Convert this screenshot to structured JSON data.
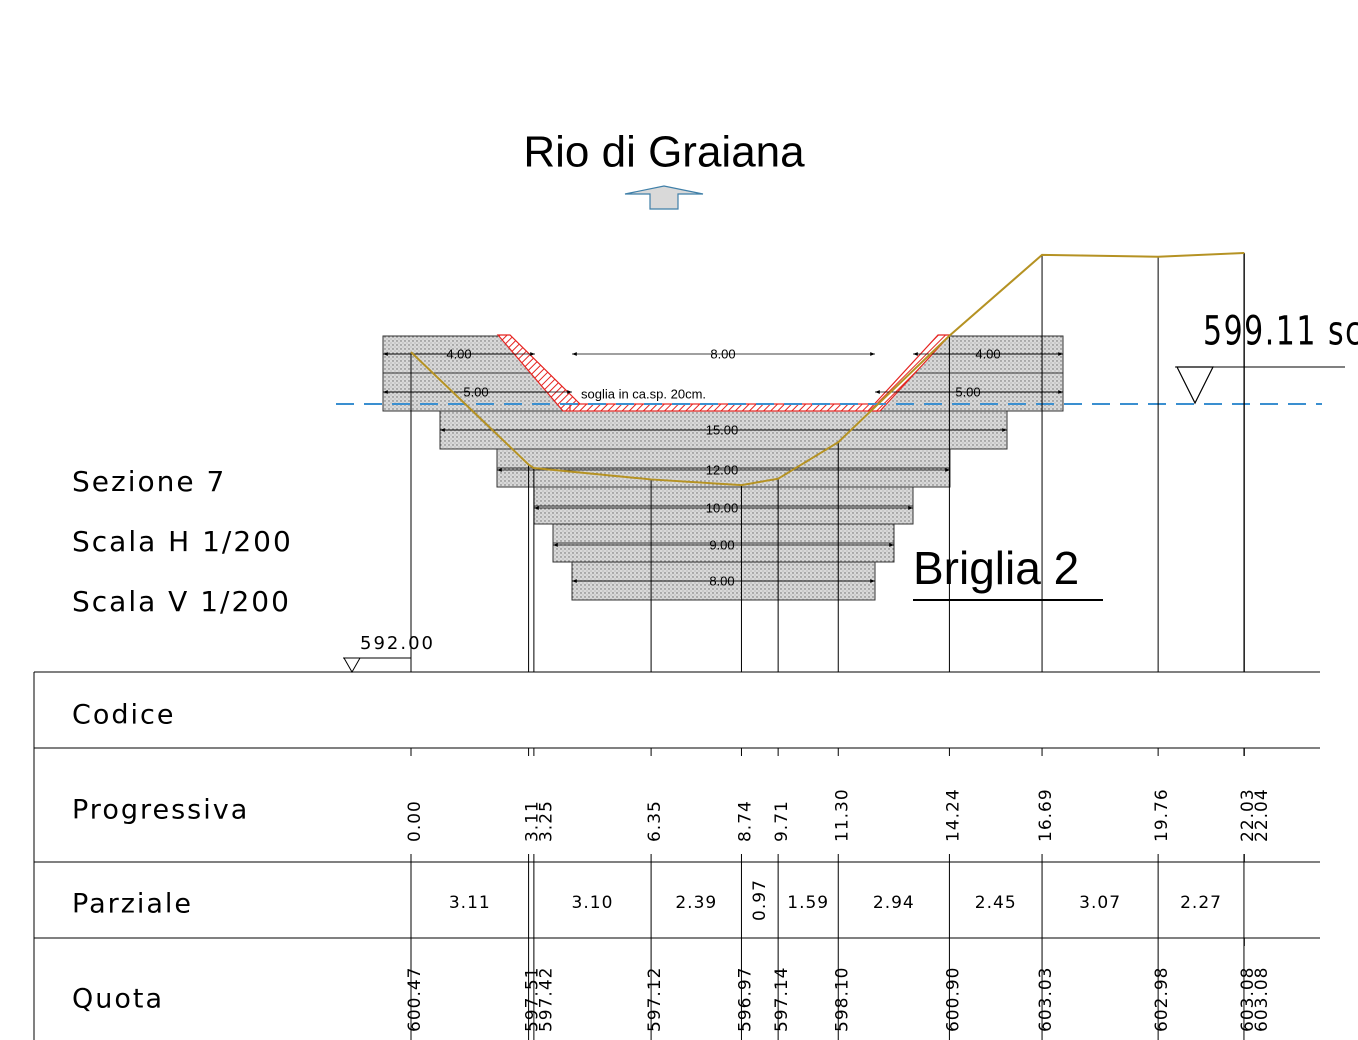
{
  "title": "Rio di Graiana",
  "section_info": [
    "Sezione 7",
    "Scala H 1/200",
    "Scala V 1/200"
  ],
  "structure_label": "Briglia 2",
  "levels": {
    "reference": "592.00",
    "water": "599.11 sc"
  },
  "dimensions": [
    "4.00",
    "5.00",
    "8.00",
    "soglia in ca.sp. 20cm.",
    "15.00",
    "12.00",
    "10.00",
    "9.00",
    "8.00",
    "4.00",
    "5.00"
  ],
  "table": {
    "headers": [
      "Codice",
      "Progressiva",
      "Parziale",
      "Quota"
    ],
    "progressiva": [
      "0.00",
      "3.11",
      "3.25",
      "6.35",
      "8.74",
      "9.71",
      "11.30",
      "14.24",
      "16.69",
      "19.76",
      "22.03",
      "22.04"
    ],
    "parziale": [
      "3.11",
      "3.10",
      "2.39",
      "0.97",
      "1.59",
      "2.94",
      "2.45",
      "3.07",
      "2.27"
    ],
    "quota": [
      "600.47",
      "597.51",
      "597.42",
      "597.12",
      "596.97",
      "597.14",
      "598.10",
      "600.90",
      "603.03",
      "602.98",
      "603.08",
      "603.08"
    ]
  }
}
